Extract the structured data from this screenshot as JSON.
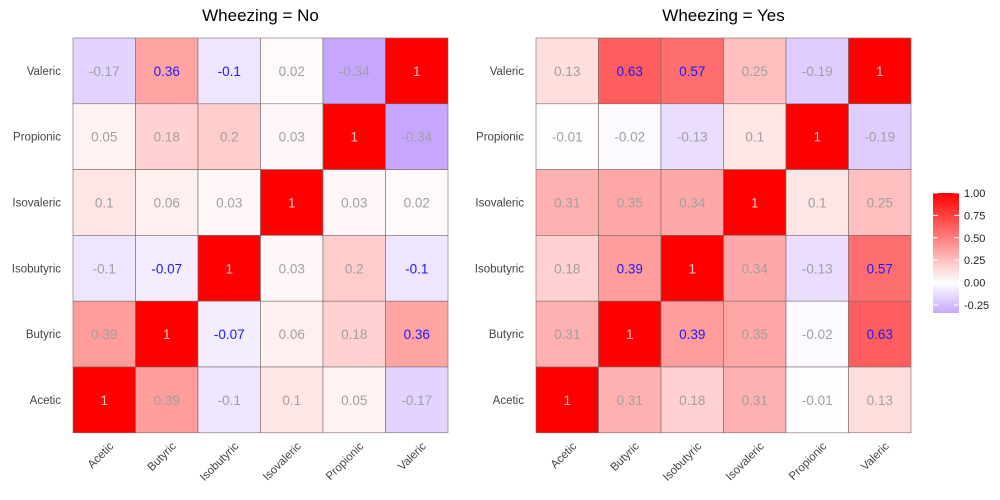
{
  "chart_data": [
    {
      "type": "heatmap",
      "title": "Wheezing = No",
      "xlabel": "",
      "ylabel": "",
      "x_categories": [
        "Acetic",
        "Butyric",
        "Isobutyric",
        "Isovaleric",
        "Propionic",
        "Valeric"
      ],
      "y_categories": [
        "Valeric",
        "Propionic",
        "Isovaleric",
        "Isobutyric",
        "Butyric",
        "Acetic"
      ],
      "values": [
        [
          -0.17,
          0.36,
          -0.1,
          0.02,
          -0.34,
          1
        ],
        [
          0.05,
          0.18,
          0.2,
          0.03,
          1,
          -0.34
        ],
        [
          0.1,
          0.06,
          0.03,
          1,
          0.03,
          0.02
        ],
        [
          -0.1,
          -0.07,
          1,
          0.03,
          0.2,
          -0.1
        ],
        [
          0.39,
          1,
          -0.07,
          0.06,
          0.18,
          0.36
        ],
        [
          1,
          0.39,
          -0.1,
          0.1,
          0.05,
          -0.17
        ]
      ],
      "highlighted_values": [
        "0.36",
        "-0.1",
        "-0.07",
        "-0.1",
        "-0.07",
        "0.36"
      ],
      "highlighted_cells": [
        [
          0,
          1
        ],
        [
          0,
          2
        ],
        [
          3,
          1
        ],
        [
          3,
          5
        ],
        [
          4,
          2
        ],
        [
          4,
          5
        ]
      ]
    },
    {
      "type": "heatmap",
      "title": "Wheezing = Yes",
      "xlabel": "",
      "ylabel": "",
      "x_categories": [
        "Acetic",
        "Butyric",
        "Isobutyric",
        "Isovaleric",
        "Propionic",
        "Valeric"
      ],
      "y_categories": [
        "Valeric",
        "Propionic",
        "Isovaleric",
        "Isobutyric",
        "Butyric",
        "Acetic"
      ],
      "values": [
        [
          0.13,
          0.63,
          0.57,
          0.25,
          -0.19,
          1
        ],
        [
          -0.01,
          -0.02,
          -0.13,
          0.1,
          1,
          -0.19
        ],
        [
          0.31,
          0.35,
          0.34,
          1,
          0.1,
          0.25
        ],
        [
          0.18,
          0.39,
          1,
          0.34,
          -0.13,
          0.57
        ],
        [
          0.31,
          1,
          0.39,
          0.35,
          -0.02,
          0.63
        ],
        [
          1,
          0.31,
          0.18,
          0.31,
          -0.01,
          0.13
        ]
      ],
      "highlighted_cells": [
        [
          0,
          1
        ],
        [
          0,
          2
        ],
        [
          3,
          1
        ],
        [
          3,
          5
        ],
        [
          4,
          2
        ],
        [
          4,
          5
        ]
      ]
    }
  ],
  "legend": {
    "ticks": [
      "1.00",
      "0.75",
      "0.50",
      "0.25",
      "0.00",
      "-0.25"
    ],
    "tick_values": [
      1.0,
      0.75,
      0.5,
      0.25,
      0.0,
      -0.25
    ],
    "range": [
      -0.34,
      1.0
    ],
    "placement": "right",
    "colors": {
      "low": "#c7a6ff",
      "mid": "#ffffff",
      "high": "#ff0000"
    }
  },
  "text_colors": {
    "normal": "#a0a0a0",
    "diagonal": "#f4c4c4",
    "highlight": "#1a1aff"
  }
}
